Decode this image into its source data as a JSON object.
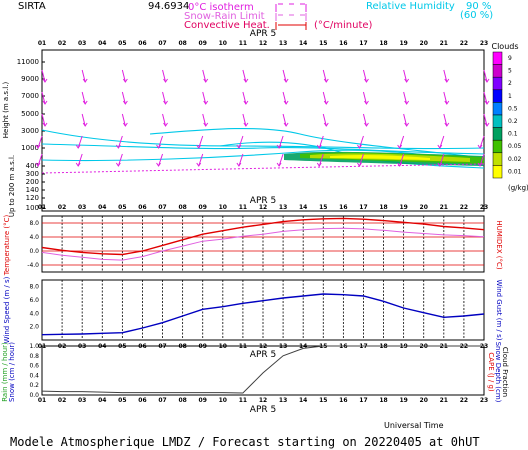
{
  "header": {
    "station": "SIRTA",
    "coords": "94.6934",
    "legend": {
      "isotherm": "0°C isotherm",
      "snow_rain": "Snow-Rain Limit",
      "convective": "Convective Heat.",
      "convective_unit": "(°C/minute)",
      "rh_label": "Relative Humidity",
      "rh_90": "90 %",
      "rh_60": "(60 %)"
    }
  },
  "hours": [
    "01",
    "02",
    "03",
    "04",
    "05",
    "06",
    "07",
    "08",
    "09",
    "10",
    "11",
    "12",
    "13",
    "14",
    "15",
    "16",
    "17",
    "18",
    "19",
    "20",
    "21",
    "22",
    "23"
  ],
  "date_label": "APR 5",
  "clouds_scale": {
    "title": "Clouds",
    "unit": "(g/kg)",
    "levels": [
      "9",
      "5",
      "2",
      "1",
      "0.5",
      "0.2",
      "0.1",
      "0.05",
      "0.02",
      "0.01"
    ],
    "colors": [
      "#ff00ff",
      "#cc00cc",
      "#7f00ff",
      "#0000ff",
      "#0080ff",
      "#00c0c0",
      "#00a060",
      "#40c000",
      "#c0e000",
      "#ffff00"
    ]
  },
  "colors": {
    "temp": "#e00000",
    "humidex": "#e060e0",
    "wind": "#0000c0",
    "barb": "#e020e0",
    "rh": "#00c8e8",
    "precip": "#404040"
  },
  "chart_data": [
    {
      "type": "line",
      "title": "Height (m a.s.l.)",
      "ylabel": "Height (m a.s.l.)",
      "yticks": [
        "11000",
        "9000",
        "7000",
        "5000",
        "3000",
        "1000",
        "400",
        "300",
        "200",
        "140",
        "120",
        "100"
      ],
      "wind_barbs_rows": [
        "9000",
        "7000",
        "5000",
        "3000",
        "1000"
      ]
    },
    {
      "type": "line",
      "ylabel": "Temperature (°C)",
      "ylabel_right": "HUMIDEX (°C)",
      "yticks": [
        "8.0",
        "4.0",
        "0.0",
        "-4.0"
      ],
      "ylim": [
        -6,
        10
      ],
      "x": [
        1,
        2,
        3,
        4,
        5,
        6,
        7,
        8,
        9,
        10,
        11,
        12,
        13,
        14,
        15,
        16,
        17,
        18,
        19,
        20,
        21,
        22,
        23
      ],
      "series": [
        {
          "name": "Temperature",
          "values": [
            1.0,
            0.2,
            -0.4,
            -0.8,
            -1.0,
            0.0,
            1.6,
            3.2,
            4.8,
            5.8,
            6.8,
            7.6,
            8.4,
            8.9,
            9.2,
            9.3,
            9.1,
            8.7,
            8.2,
            7.7,
            7.0,
            6.6,
            6.1
          ]
        },
        {
          "name": "HUMIDEX",
          "values": [
            -0.4,
            -1.2,
            -1.8,
            -2.4,
            -2.6,
            -1.6,
            0.0,
            1.4,
            2.8,
            3.4,
            4.2,
            4.8,
            5.6,
            6.1,
            6.4,
            6.5,
            6.3,
            5.9,
            5.4,
            5.0,
            4.6,
            4.4,
            4.1
          ]
        }
      ]
    },
    {
      "type": "line",
      "ylabel": "Wind Speed (m / s)",
      "ylabel_right": "Wind Gust (m / s)",
      "yticks": [
        "8.0",
        "6.0",
        "4.0",
        "2.0"
      ],
      "ylim": [
        0,
        9
      ],
      "x": [
        1,
        2,
        3,
        4,
        5,
        6,
        7,
        8,
        9,
        10,
        11,
        12,
        13,
        14,
        15,
        16,
        17,
        18,
        19,
        20,
        21,
        22,
        23
      ],
      "series": [
        {
          "name": "Wind Speed",
          "values": [
            0.8,
            0.85,
            0.9,
            1.0,
            1.1,
            1.8,
            2.6,
            3.6,
            4.6,
            5.0,
            5.5,
            5.9,
            6.3,
            6.6,
            6.9,
            6.8,
            6.6,
            5.8,
            4.8,
            4.1,
            3.4,
            3.6,
            3.9
          ]
        }
      ]
    },
    {
      "type": "line",
      "ylabel": "Rain (mm / hour) Snow (cm / hour)",
      "ylabel_right": "CAPE (J / g) Snow Depth (cm) Cloud Fraction",
      "yticks": [
        "1.0",
        "0.8",
        "0.6",
        "0.4",
        "0.2",
        "0.0"
      ],
      "ylim": [
        0,
        1
      ],
      "x": [
        1,
        2,
        3,
        4,
        5,
        6,
        7,
        8,
        9,
        10,
        11,
        12,
        13,
        14,
        15,
        16,
        17,
        18,
        19,
        20,
        21,
        22,
        23
      ],
      "series": [
        {
          "name": "Cloud Fraction",
          "values": [
            0.08,
            0.07,
            0.07,
            0.06,
            0.05,
            0.05,
            0.05,
            0.05,
            0.05,
            0.05,
            0.04,
            0.45,
            0.8,
            0.95,
            1.0,
            1.0,
            1.0,
            1.0,
            1.0,
            1.0,
            1.0,
            1.0,
            1.0
          ]
        }
      ]
    }
  ],
  "footer": {
    "universal_time": "Universal Time",
    "model": "Modele Atmospherique LMDZ / Forecast starting on 20220405 at 0hUT"
  }
}
